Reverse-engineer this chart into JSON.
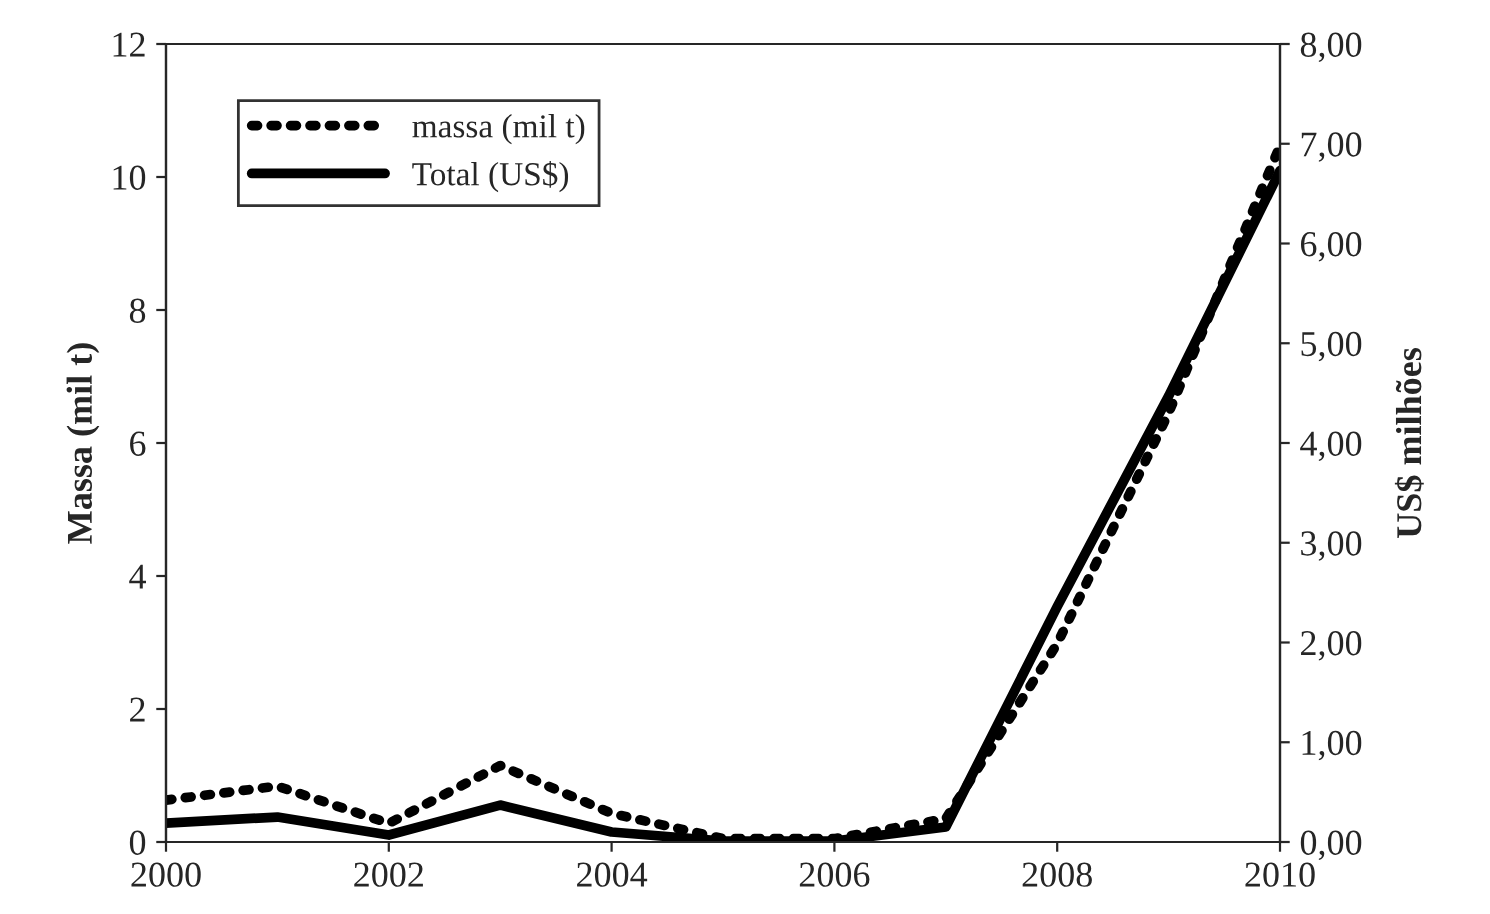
{
  "chart_data": {
    "type": "line",
    "x": [
      2000,
      2001,
      2002,
      2003,
      2004,
      2005,
      2006,
      2007,
      2008,
      2009,
      2010
    ],
    "series": [
      {
        "name": "massa (mil t)",
        "color": "#000000",
        "line_style": "dotted",
        "values": [
          0.63,
          0.84,
          0.28,
          1.15,
          0.43,
          0.05,
          0.05,
          0.35,
          2.98,
          6.45,
          10.47
        ]
      },
      {
        "name": "Total (US$)",
        "color": "#000000",
        "line_style": "solid",
        "axis": "y2",
        "values": [
          0.19,
          0.25,
          0.07,
          0.37,
          0.1,
          0.01,
          0.01,
          0.15,
          2.36,
          4.47,
          6.73
        ]
      }
    ],
    "ylabel": "Massa (mil t)",
    "y2label": "US$ milhões",
    "xlim": [
      2000,
      2010
    ],
    "xticks": [
      2000,
      2002,
      2004,
      2006,
      2008,
      2010
    ],
    "ylim": [
      0,
      12
    ],
    "yticks": [
      0,
      2,
      4,
      6,
      8,
      10,
      12
    ],
    "y2lim": [
      0,
      8
    ],
    "y2ticks": [
      {
        "value": 0,
        "label": "0,00"
      },
      {
        "value": 1,
        "label": "1,00"
      },
      {
        "value": 2,
        "label": "2,00"
      },
      {
        "value": 3,
        "label": "3,00"
      },
      {
        "value": 4,
        "label": "4,00"
      },
      {
        "value": 5,
        "label": "5,00"
      },
      {
        "value": 6,
        "label": "6,00"
      },
      {
        "value": 7,
        "label": "7,00"
      },
      {
        "value": 8,
        "label": "8,00"
      }
    ],
    "legend": "top left",
    "grid": false
  }
}
